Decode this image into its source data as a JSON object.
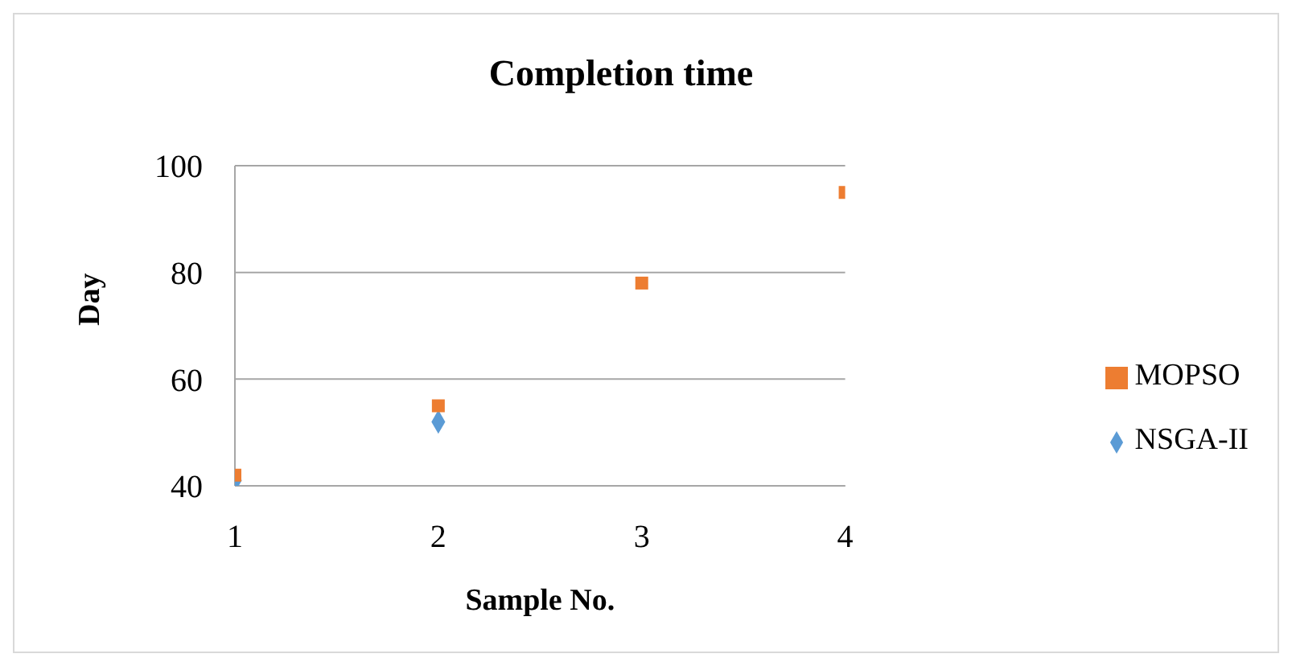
{
  "chart_data": {
    "type": "scatter",
    "title": "Completion time",
    "xlabel": "Sample No.",
    "ylabel": "Day",
    "x": [
      1,
      2,
      3,
      4
    ],
    "series": [
      {
        "name": "NSGA-II",
        "color": "#5b9bd5",
        "marker": "diamond",
        "values": [
          41,
          52,
          null,
          null
        ]
      },
      {
        "name": "MOPSO",
        "color": "#ed7d31",
        "marker": "square",
        "values": [
          42,
          55,
          78,
          95
        ]
      }
    ],
    "xlim": [
      1,
      4
    ],
    "xticks": [
      1,
      2,
      3,
      4
    ],
    "ylim": [
      40,
      100
    ],
    "yticks": [
      40,
      60,
      80,
      100
    ],
    "grid": "y",
    "legend": "right"
  }
}
